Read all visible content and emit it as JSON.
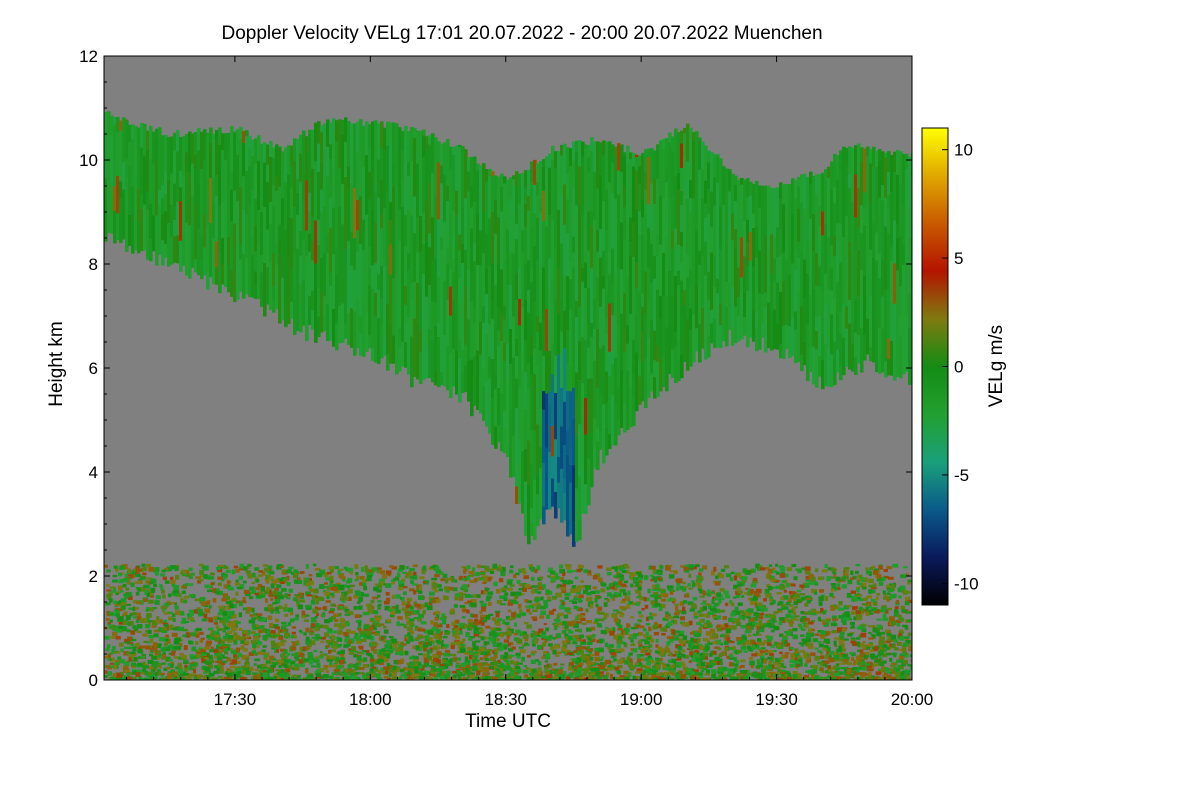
{
  "chart_data": {
    "type": "heatmap",
    "title": "Doppler Velocity VELg   17:01 20.07.2022 - 20:00 20.07.2022 Muenchen",
    "xlabel": "Time UTC",
    "ylabel": "Height km",
    "colorbar_label": "VELg m/s",
    "x_range": [
      "17:01",
      "20:00"
    ],
    "x_ticks": [
      "17:30",
      "18:00",
      "18:30",
      "19:00",
      "19:30",
      "20:00"
    ],
    "y_range": [
      0,
      12
    ],
    "y_ticks": [
      0,
      2,
      4,
      6,
      8,
      10,
      12
    ],
    "colorbar_range": [
      -11,
      11
    ],
    "colorbar_ticks": [
      -10,
      -5,
      0,
      5,
      10
    ],
    "background_color": "#808080",
    "colormap": [
      "#000000",
      "#0a1a5c",
      "#0a5a8a",
      "#1aa07a",
      "#22a030",
      "#148c14",
      "#7f7a10",
      "#b41400",
      "#c85a00",
      "#e0a800",
      "#ffff00"
    ],
    "cloud_layer": {
      "description_values": "ice cloud / cirrus shield with fall streaks, mostly slightly negative velocities",
      "top_km": [
        [
          "17:01",
          10.9
        ],
        [
          "17:15",
          10.5
        ],
        [
          "17:30",
          10.6
        ],
        [
          "17:40",
          10.2
        ],
        [
          "17:50",
          10.8
        ],
        [
          "18:00",
          10.7
        ],
        [
          "18:10",
          10.6
        ],
        [
          "18:20",
          10.2
        ],
        [
          "18:30",
          9.6
        ],
        [
          "18:40",
          10.2
        ],
        [
          "18:50",
          10.4
        ],
        [
          "19:00",
          10.1
        ],
        [
          "19:10",
          10.7
        ],
        [
          "19:20",
          9.7
        ],
        [
          "19:30",
          9.5
        ],
        [
          "19:40",
          9.8
        ],
        [
          "19:45",
          10.3
        ],
        [
          "20:00",
          10.1
        ]
      ],
      "base_km": [
        [
          "17:01",
          8.5
        ],
        [
          "17:15",
          8.0
        ],
        [
          "17:30",
          7.4
        ],
        [
          "17:45",
          6.7
        ],
        [
          "18:00",
          6.3
        ],
        [
          "18:10",
          5.7
        ],
        [
          "18:20",
          5.5
        ],
        [
          "18:30",
          4.2
        ],
        [
          "18:35",
          2.6
        ],
        [
          "18:40",
          3.4
        ],
        [
          "18:45",
          2.5
        ],
        [
          "18:50",
          4.2
        ],
        [
          "19:00",
          5.2
        ],
        [
          "19:10",
          6.1
        ],
        [
          "19:20",
          6.6
        ],
        [
          "19:30",
          6.4
        ],
        [
          "19:40",
          5.6
        ],
        [
          "19:50",
          6.1
        ],
        [
          "20:00",
          5.7
        ]
      ]
    },
    "boundary_layer": {
      "description_values": "noisy low-level returns with velocities near -2 to +3 m/s",
      "top_km": 2.2
    }
  }
}
